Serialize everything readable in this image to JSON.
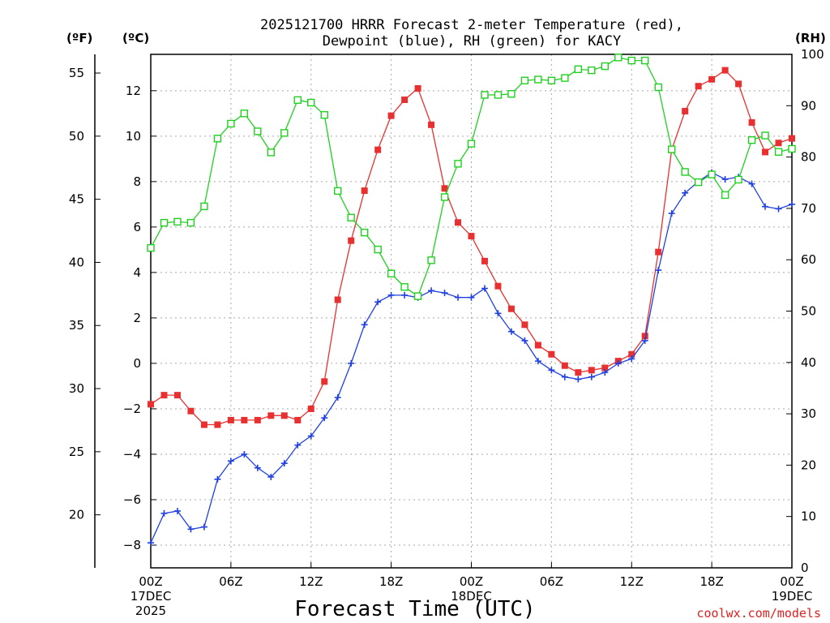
{
  "chart_data": {
    "type": "line",
    "title_line1": "2025121700 HRRR Forecast 2-meter Temperature (red),",
    "title_line2": "Dewpoint (blue), RH (green) for KACY",
    "units": {
      "fahrenheit": "(ºF)",
      "celsius": "(ºC)",
      "rh": "(RH)"
    },
    "xlabel": "Forecast Time (UTC)",
    "credit": "coolwx.com/models",
    "x_hours_range": [
      0,
      48
    ],
    "y_celsius_range": [
      -9,
      13.6
    ],
    "y_rh_range": [
      0,
      100
    ],
    "celsius_ticks": [
      "-8",
      "-6",
      "-4",
      "-2",
      "0",
      "2",
      "4",
      "6",
      "8",
      "10",
      "12"
    ],
    "fahrenheit_ticks": [
      "20",
      "25",
      "30",
      "35",
      "40",
      "45",
      "50",
      "55"
    ],
    "rh_ticks": [
      "0",
      "10",
      "20",
      "30",
      "40",
      "50",
      "60",
      "70",
      "80",
      "90",
      "100"
    ],
    "x_ticks": [
      {
        "hour": 0,
        "lines": [
          "00Z",
          "17DEC",
          "2025"
        ]
      },
      {
        "hour": 6,
        "lines": [
          "06Z"
        ]
      },
      {
        "hour": 12,
        "lines": [
          "12Z"
        ]
      },
      {
        "hour": 18,
        "lines": [
          "18Z"
        ]
      },
      {
        "hour": 24,
        "lines": [
          "00Z",
          "18DEC"
        ]
      },
      {
        "hour": 30,
        "lines": [
          "06Z"
        ]
      },
      {
        "hour": 36,
        "lines": [
          "12Z"
        ]
      },
      {
        "hour": 42,
        "lines": [
          "18Z"
        ]
      },
      {
        "hour": 48,
        "lines": [
          "00Z",
          "19DEC"
        ]
      }
    ],
    "series": [
      {
        "key": "temperature",
        "axis": "celsius",
        "color": "#e83030",
        "marker": "filled-square",
        "values": [
          -1.8,
          -1.4,
          -1.4,
          -2.1,
          -2.7,
          -2.7,
          -2.5,
          -2.5,
          -2.5,
          -2.3,
          -2.3,
          -2.5,
          -2.0,
          -0.8,
          2.8,
          5.4,
          7.6,
          9.4,
          10.9,
          11.6,
          12.1,
          10.5,
          7.7,
          6.2,
          5.6,
          4.5,
          3.4,
          2.4,
          1.7,
          0.8,
          0.4,
          -0.1,
          -0.4,
          -0.3,
          -0.2,
          0.1,
          0.4,
          1.2,
          4.9,
          9.4,
          11.1,
          12.2,
          12.5,
          12.9,
          12.3,
          10.6,
          9.3,
          9.7,
          9.9
        ]
      },
      {
        "key": "dewpoint",
        "axis": "celsius",
        "color": "#2040e0",
        "marker": "plus",
        "values": [
          -7.9,
          -6.6,
          -6.5,
          -7.3,
          -7.2,
          -5.1,
          -4.3,
          -4.0,
          -4.6,
          -5.0,
          -4.4,
          -3.6,
          -3.2,
          -2.4,
          -1.5,
          0.0,
          1.7,
          2.7,
          3.0,
          3.0,
          2.9,
          3.2,
          3.1,
          2.9,
          2.9,
          3.3,
          2.2,
          1.4,
          1.0,
          0.1,
          -0.3,
          -0.6,
          -0.7,
          -0.6,
          -0.4,
          0.0,
          0.2,
          1.0,
          4.1,
          6.6,
          7.5,
          8.0,
          8.4,
          8.1,
          8.2,
          7.9,
          6.9,
          6.8,
          7.0
        ]
      },
      {
        "key": "rh",
        "axis": "rh",
        "color": "#20d020",
        "marker": "open-square",
        "values": [
          62.3,
          67.2,
          67.4,
          67.2,
          70.4,
          83.6,
          86.5,
          88.5,
          85.0,
          80.9,
          84.7,
          91.1,
          90.6,
          88.2,
          73.4,
          68.2,
          65.3,
          62.0,
          57.3,
          54.7,
          52.9,
          59.9,
          72.2,
          78.7,
          82.6,
          92.1,
          92.1,
          92.3,
          94.9,
          95.1,
          94.9,
          95.4,
          97.1,
          96.9,
          97.7,
          99.4,
          98.8,
          98.8,
          93.6,
          81.5,
          77.1,
          75.1,
          76.6,
          72.6,
          75.6,
          83.3,
          84.2,
          81.0,
          81.6
        ]
      }
    ]
  }
}
